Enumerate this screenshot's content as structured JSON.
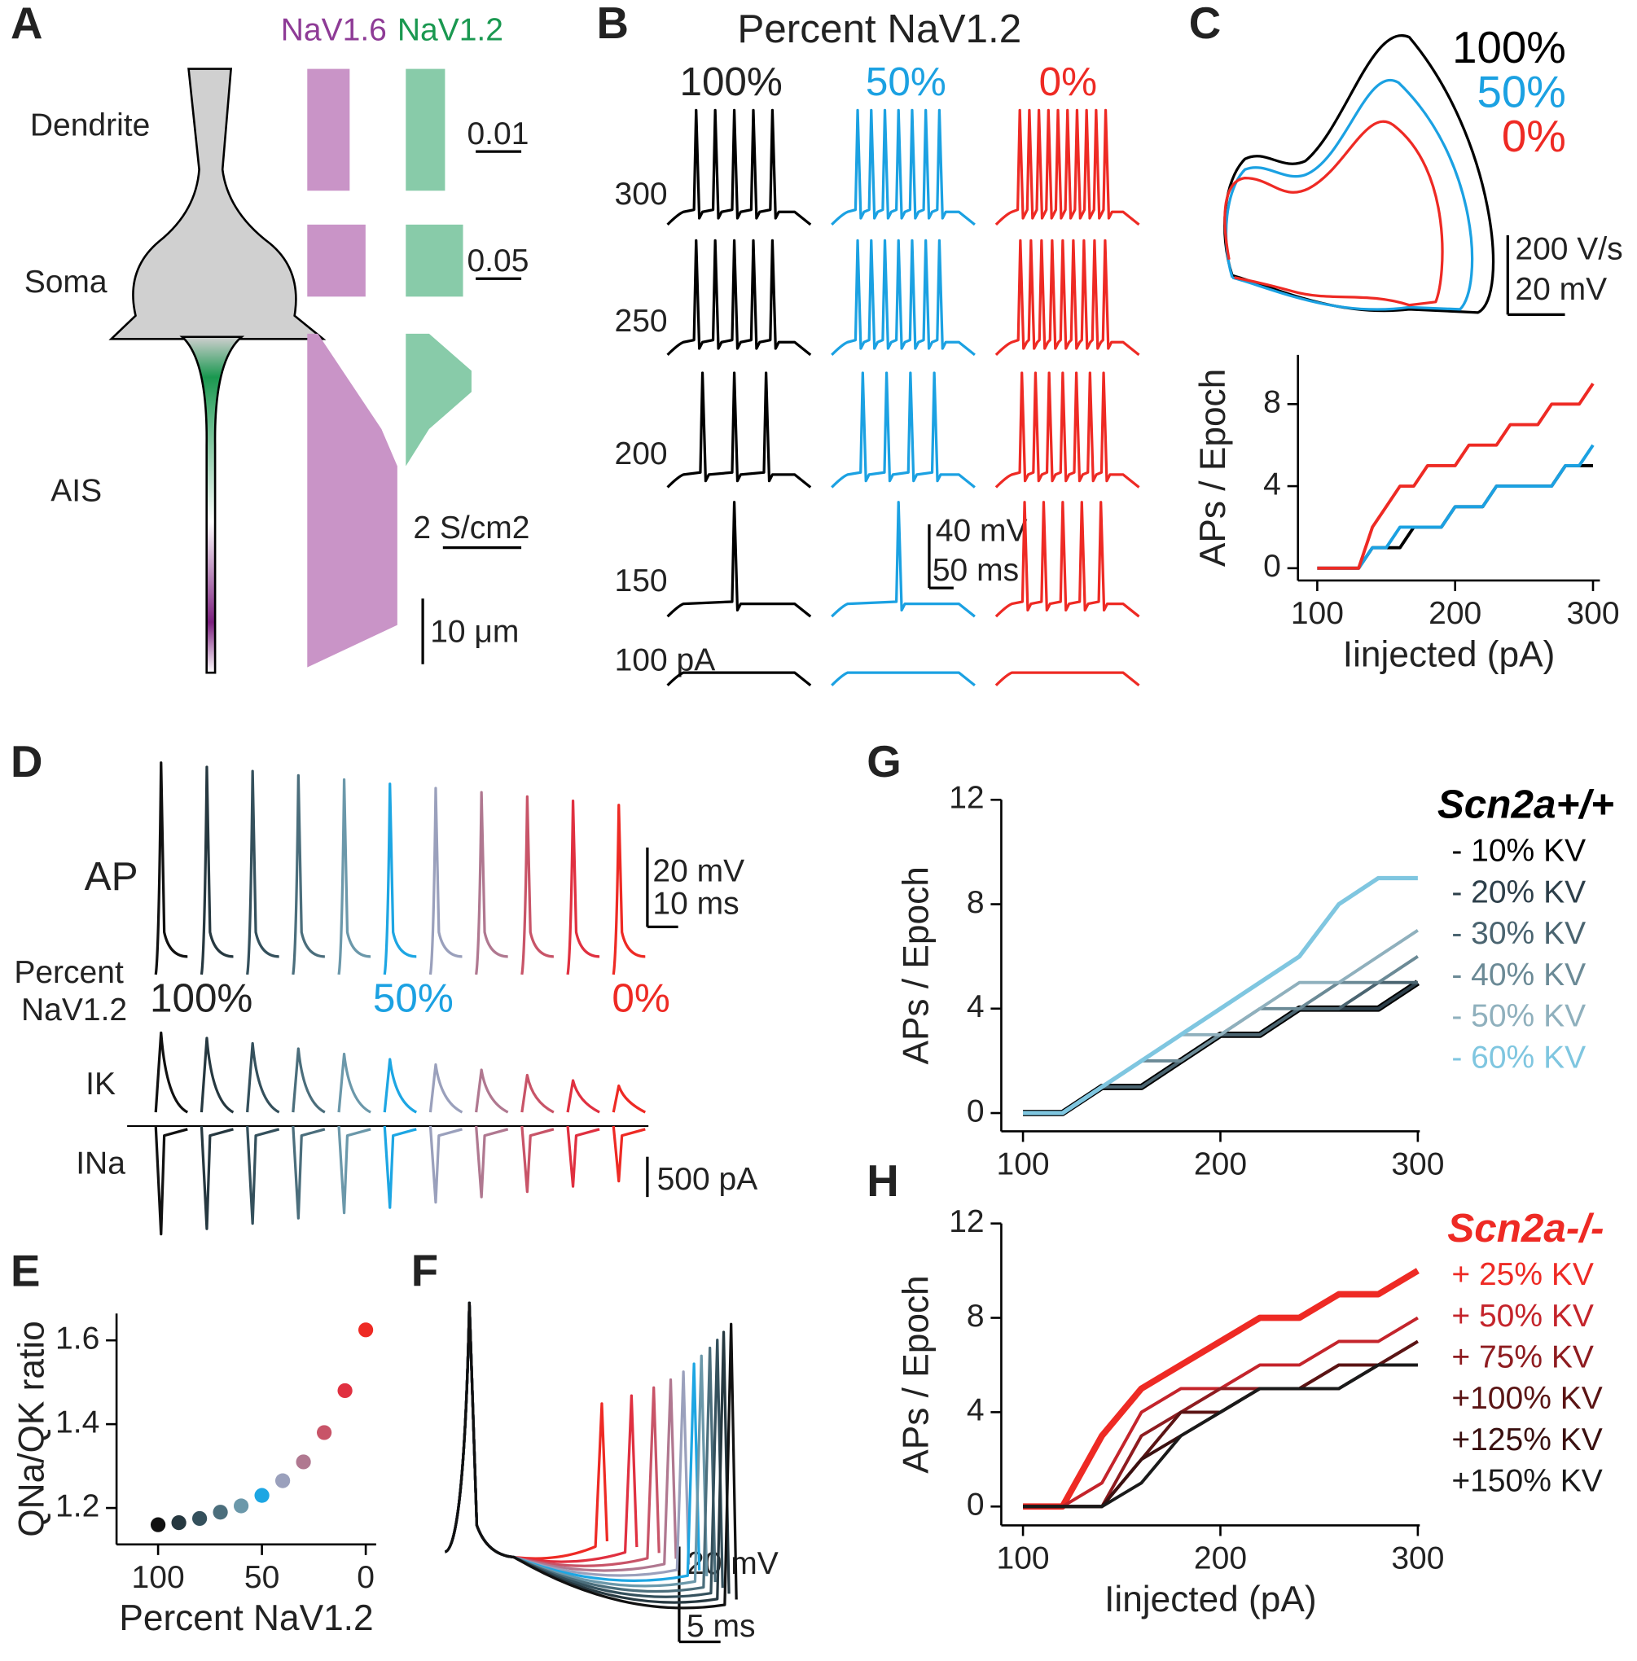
{
  "panels": {
    "A": {
      "label": "A",
      "channels": [
        "NaV1.6",
        "NaV1.2"
      ],
      "regions": [
        "Dendrite",
        "Soma",
        "AIS"
      ],
      "scale_labels": [
        "0.01",
        "0.05",
        "2 S/cm2",
        "10 μm"
      ]
    },
    "B": {
      "label": "B",
      "title": "Percent NaV1.2",
      "columns": [
        "100%",
        "50%",
        "0%"
      ],
      "rows": [
        "300",
        "250",
        "200",
        "150",
        "100 pA"
      ],
      "scale_labels": [
        "40 mV",
        "50 ms"
      ]
    },
    "C": {
      "label": "C",
      "scale_labels": [
        "200 V/s",
        "20 mV"
      ]
    },
    "D": {
      "label": "D",
      "trace_labels": [
        "AP",
        "IK",
        "INa"
      ],
      "row_title": [
        "Percent",
        "NaV1.2"
      ],
      "columns": [
        "100%",
        "50%",
        "0%"
      ],
      "scale_labels": [
        "20 mV",
        "10 ms",
        "500 pA"
      ]
    },
    "E": {
      "label": "E"
    },
    "F": {
      "label": "F",
      "scale_labels": [
        "20 mV",
        "5 ms"
      ]
    },
    "G": {
      "label": "G"
    },
    "H": {
      "label": "H"
    }
  },
  "chart_data": [
    {
      "type": "line",
      "ylabel": "APs / Epoch",
      "xlabel": "Iinjected (pA)",
      "xlim": [
        86,
        305
      ],
      "ylim": [
        -0.6,
        10.4
      ],
      "xticks": [
        100,
        200,
        300
      ],
      "yticks": [
        0,
        4,
        8
      ],
      "x": [
        100,
        110,
        120,
        130,
        140,
        150,
        160,
        170,
        180,
        190,
        200,
        210,
        220,
        230,
        240,
        250,
        260,
        270,
        280,
        290,
        300
      ],
      "series": [
        {
          "name": "100%",
          "color": "#000000",
          "values": [
            0,
            0,
            0,
            0,
            1,
            1,
            1,
            2,
            2,
            2,
            3,
            3,
            3,
            4,
            4,
            4,
            4,
            4,
            5,
            5,
            5
          ]
        },
        {
          "name": "50%",
          "color": "#1ba1e2",
          "values": [
            0,
            0,
            0,
            0,
            1,
            1,
            2,
            2,
            2,
            2,
            3,
            3,
            3,
            4,
            4,
            4,
            4,
            4,
            5,
            5,
            6
          ]
        },
        {
          "name": "0%",
          "color": "#ee2a24",
          "values": [
            0,
            0,
            0,
            0,
            2,
            3,
            4,
            4,
            5,
            5,
            5,
            6,
            6,
            6,
            7,
            7,
            7,
            8,
            8,
            8,
            9
          ]
        }
      ]
    },
    {
      "type": "scatter",
      "ylabel": "QNa/QK ratio",
      "xlabel": "Percent NaV1.2",
      "xlim": [
        120,
        -5
      ],
      "ylim": [
        1.113,
        1.664
      ],
      "xticks": [
        100,
        50,
        0
      ],
      "yticks": [
        1.2,
        1.4,
        1.6
      ],
      "x": [
        100,
        90,
        80,
        70,
        60,
        50,
        40,
        30,
        20,
        10,
        0
      ],
      "values": [
        1.16,
        1.165,
        1.175,
        1.19,
        1.205,
        1.23,
        1.265,
        1.31,
        1.38,
        1.48,
        1.625
      ],
      "colors": [
        "#111111",
        "#263840",
        "#34505c",
        "#4b6e7c",
        "#6b98aa",
        "#1da6e3",
        "#9aa0bc",
        "#b07890",
        "#c85468",
        "#e03040",
        "#ee2a24"
      ]
    },
    {
      "type": "line",
      "ylabel": "APs / Epoch",
      "legend_title": "Scn2a+/+",
      "xlim": [
        89,
        301
      ],
      "ylim": [
        -0.7,
        12
      ],
      "xticks": [
        100,
        200,
        300
      ],
      "yticks": [
        0,
        4,
        8,
        12
      ],
      "x": [
        100,
        120,
        140,
        160,
        180,
        200,
        220,
        240,
        260,
        280,
        300
      ],
      "series": [
        {
          "name": "- 10% KV",
          "color": "#000000",
          "values": [
            0,
            0,
            1,
            1,
            2,
            3,
            3,
            4,
            4,
            4,
            5
          ]
        },
        {
          "name": "- 20% KV",
          "color": "#2d3f4a",
          "values": [
            0,
            0,
            1,
            1,
            2,
            3,
            3,
            4,
            4,
            4,
            5
          ]
        },
        {
          "name": "- 30% KV",
          "color": "#4a6470",
          "values": [
            0,
            0,
            1,
            1,
            2,
            3,
            3,
            4,
            4,
            5,
            5
          ]
        },
        {
          "name": "- 40% KV",
          "color": "#6b8a96",
          "values": [
            0,
            0,
            1,
            2,
            2,
            3,
            4,
            4,
            5,
            5,
            6
          ]
        },
        {
          "name": "- 50% KV",
          "color": "#8fb0bd",
          "values": [
            0,
            0,
            1,
            2,
            3,
            3,
            4,
            5,
            5,
            6,
            7
          ]
        },
        {
          "name": "- 60% KV",
          "color": "#7fc6e0",
          "values": [
            0,
            0,
            1,
            2,
            3,
            4,
            5,
            6,
            8,
            9,
            9
          ]
        }
      ]
    },
    {
      "type": "line",
      "ylabel": "APs / Epoch",
      "xlabel": "Iinjected (pA)",
      "legend_title": "Scn2a-/-",
      "xlim": [
        89,
        301
      ],
      "ylim": [
        -0.8,
        12
      ],
      "xticks": [
        100,
        200,
        300
      ],
      "yticks": [
        0,
        4,
        8,
        12
      ],
      "x": [
        100,
        120,
        140,
        160,
        180,
        200,
        220,
        240,
        260,
        280,
        300
      ],
      "series": [
        {
          "name": "+  25% KV",
          "color": "#ee2a24",
          "values": [
            0,
            0,
            3,
            5,
            6,
            7,
            8,
            8,
            9,
            9,
            10
          ]
        },
        {
          "name": "+  50% KV",
          "color": "#c4242b",
          "values": [
            0,
            0,
            1,
            4,
            5,
            5,
            6,
            6,
            7,
            7,
            8
          ]
        },
        {
          "name": "+  75% KV",
          "color": "#8e1c20",
          "values": [
            0,
            0,
            0,
            3,
            4,
            5,
            5,
            5,
            6,
            6,
            7
          ]
        },
        {
          "name": "+100% KV",
          "color": "#5a1414",
          "values": [
            0,
            0,
            0,
            2,
            4,
            4,
            5,
            5,
            6,
            6,
            7
          ]
        },
        {
          "name": "+125% KV",
          "color": "#3a1010",
          "values": [
            0,
            0,
            0,
            2,
            3,
            4,
            5,
            5,
            5,
            6,
            6
          ]
        },
        {
          "name": "+150% KV",
          "color": "#1a1a1a",
          "values": [
            0,
            0,
            0,
            1,
            3,
            4,
            5,
            5,
            5,
            6,
            6
          ]
        }
      ]
    }
  ]
}
